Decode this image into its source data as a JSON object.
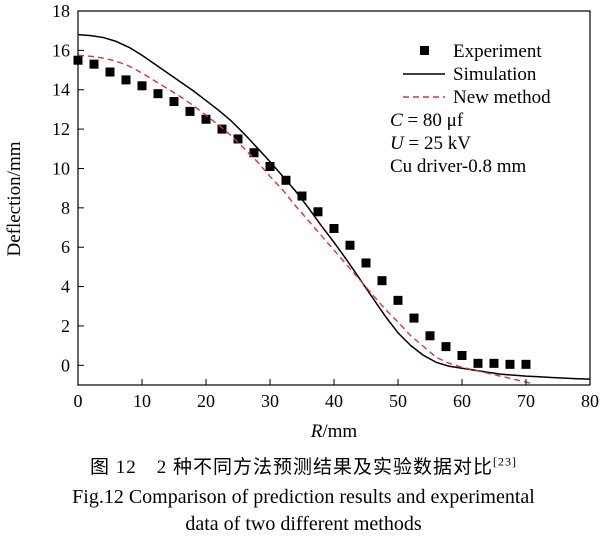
{
  "chart_data": {
    "type": "line",
    "title": "",
    "xlabel_italic": "R",
    "xlabel_rest": "/mm",
    "ylabel": "Deflection/mm",
    "xlim": [
      0,
      80
    ],
    "ylim": [
      -1,
      18
    ],
    "xticks": [
      0,
      10,
      20,
      30,
      40,
      50,
      60,
      70,
      80
    ],
    "yticks": [
      0,
      2,
      4,
      6,
      8,
      10,
      12,
      14,
      16,
      18
    ],
    "grid": false,
    "legend_position": "top-right",
    "series": [
      {
        "name": "Experiment",
        "style": "markers",
        "color": "#000000",
        "x": [
          0,
          2.5,
          5,
          7.5,
          10,
          12.5,
          15,
          17.5,
          20,
          22.5,
          25,
          27.5,
          30,
          32.5,
          35,
          37.5,
          40,
          42.5,
          45,
          47.5,
          50,
          52.5,
          55,
          57.5,
          60,
          62.5,
          65,
          67.5,
          70
        ],
        "y": [
          15.5,
          15.3,
          14.9,
          14.5,
          14.2,
          13.8,
          13.4,
          12.9,
          12.5,
          12.0,
          11.5,
          10.8,
          10.1,
          9.4,
          8.6,
          7.8,
          6.95,
          6.1,
          5.2,
          4.3,
          3.3,
          2.4,
          1.5,
          0.95,
          0.5,
          0.1,
          0.1,
          0.05,
          0.05
        ]
      },
      {
        "name": "Simulation",
        "style": "solid",
        "color": "#000000",
        "x": [
          0,
          2,
          4,
          6,
          8,
          10,
          12,
          14,
          16,
          18,
          20,
          22,
          24,
          26,
          28,
          30,
          32,
          34,
          36,
          38,
          40,
          42,
          44,
          46,
          48,
          50,
          52,
          54,
          56,
          58,
          60,
          62,
          64,
          66,
          68,
          70,
          72,
          74,
          76,
          78,
          80
        ],
        "y": [
          16.8,
          16.75,
          16.65,
          16.45,
          16.15,
          15.75,
          15.3,
          14.85,
          14.4,
          13.95,
          13.45,
          12.95,
          12.4,
          11.75,
          11.05,
          10.35,
          9.6,
          8.85,
          8.0,
          7.1,
          6.25,
          5.35,
          4.4,
          3.45,
          2.5,
          1.65,
          1.0,
          0.5,
          0.15,
          -0.05,
          -0.15,
          -0.25,
          -0.35,
          -0.45,
          -0.5,
          -0.55,
          -0.58,
          -0.62,
          -0.65,
          -0.68,
          -0.7
        ]
      },
      {
        "name": "New method",
        "style": "dashed",
        "color": "#e8322c",
        "x": [
          0,
          2,
          4,
          6,
          8,
          10,
          12,
          14,
          16,
          18,
          20,
          22,
          24,
          26,
          28,
          30,
          32,
          34,
          36,
          38,
          40,
          42,
          44,
          46,
          48,
          50,
          52,
          54,
          56,
          58,
          60,
          62,
          64,
          66,
          68,
          70,
          71
        ],
        "y": [
          15.75,
          15.7,
          15.6,
          15.45,
          15.2,
          14.85,
          14.45,
          14.05,
          13.65,
          13.2,
          12.7,
          12.2,
          11.65,
          11.0,
          10.35,
          9.6,
          8.9,
          8.1,
          7.35,
          6.6,
          5.85,
          5.1,
          4.35,
          3.6,
          2.85,
          2.2,
          1.5,
          0.95,
          0.4,
          0.1,
          -0.1,
          -0.25,
          -0.4,
          -0.55,
          -0.7,
          -0.85,
          -0.95
        ]
      }
    ],
    "annotations": [
      {
        "italic": "C",
        "rest": " = 80 μf"
      },
      {
        "italic": "U",
        "rest": " = 25 kV"
      },
      {
        "italic": "",
        "rest": "Cu driver-0.8 mm"
      }
    ]
  },
  "caption": {
    "cn_text": "图 12　2 种不同方法预测结果及实验数据对比",
    "cn_ref": "[23]",
    "en_line1": "Fig.12 Comparison of prediction results and experimental",
    "en_line2": "data of two different methods"
  }
}
